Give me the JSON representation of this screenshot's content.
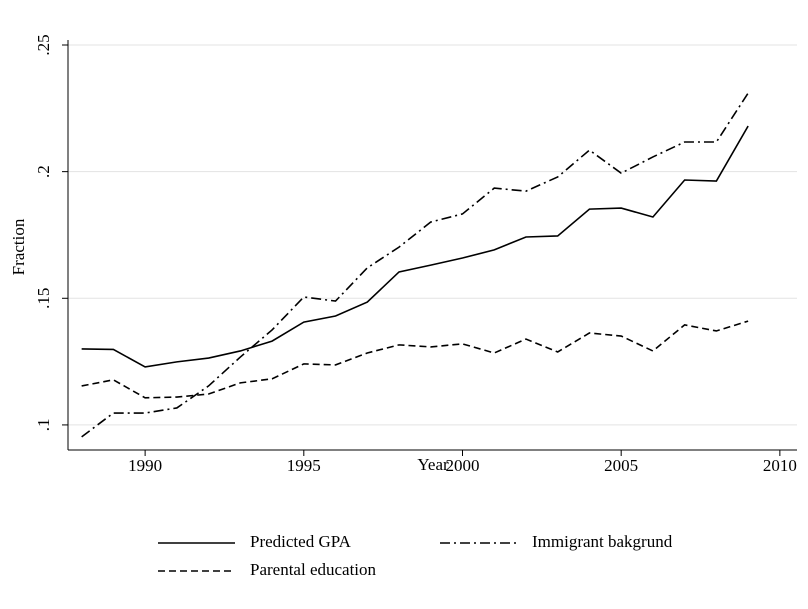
{
  "chart_data": {
    "type": "line",
    "x_label": "Year",
    "y_label": "Fraction",
    "x": [
      1988,
      1989,
      1990,
      1991,
      1992,
      1993,
      1994,
      1995,
      1996,
      1997,
      1998,
      1999,
      2000,
      2001,
      2002,
      2003,
      2004,
      2005,
      2006,
      2007,
      2008,
      2009
    ],
    "series": [
      {
        "name": "Predicted GPA",
        "color": "#000000",
        "dash": "solid",
        "values": [
          0.13,
          0.1298,
          0.1229,
          0.1249,
          0.1264,
          0.1292,
          0.1331,
          0.1406,
          0.143,
          0.1485,
          0.1604,
          0.1631,
          0.1659,
          0.1691,
          0.1742,
          0.1746,
          0.1852,
          0.1856,
          0.1821,
          0.1967,
          0.1963,
          0.218
        ]
      },
      {
        "name": "Immigrant bakgrund",
        "color": "#000000",
        "dash": "dashdot",
        "values": [
          0.0953,
          0.1047,
          0.1047,
          0.1067,
          0.1154,
          0.1268,
          0.1375,
          0.1505,
          0.1489,
          0.162,
          0.1702,
          0.1801,
          0.1833,
          0.1935,
          0.1923,
          0.1979,
          0.2085,
          0.1994,
          0.2058,
          0.2117,
          0.2117,
          0.231
        ]
      },
      {
        "name": "Parental education",
        "color": "#000000",
        "dash": "dash",
        "values": [
          0.1154,
          0.1178,
          0.1107,
          0.111,
          0.1122,
          0.1166,
          0.1182,
          0.1241,
          0.1237,
          0.1284,
          0.1316,
          0.1308,
          0.132,
          0.1284,
          0.1339,
          0.1288,
          0.1363,
          0.1351,
          0.1292,
          0.1395,
          0.1371,
          0.141
        ]
      }
    ],
    "xlim": [
      1987.57,
      2010.54
    ],
    "xticks": [
      1990,
      1995,
      2000,
      2005,
      2010
    ],
    "ylim": [
      0.0901,
      0.25
    ],
    "yticks": [
      {
        "value": 0.1,
        "label": ".1"
      },
      {
        "value": 0.15,
        "label": ".15"
      },
      {
        "value": 0.2,
        "label": ".2"
      },
      {
        "value": 0.25,
        "label": ".25"
      }
    ],
    "grid": true,
    "legend": "bottom"
  }
}
